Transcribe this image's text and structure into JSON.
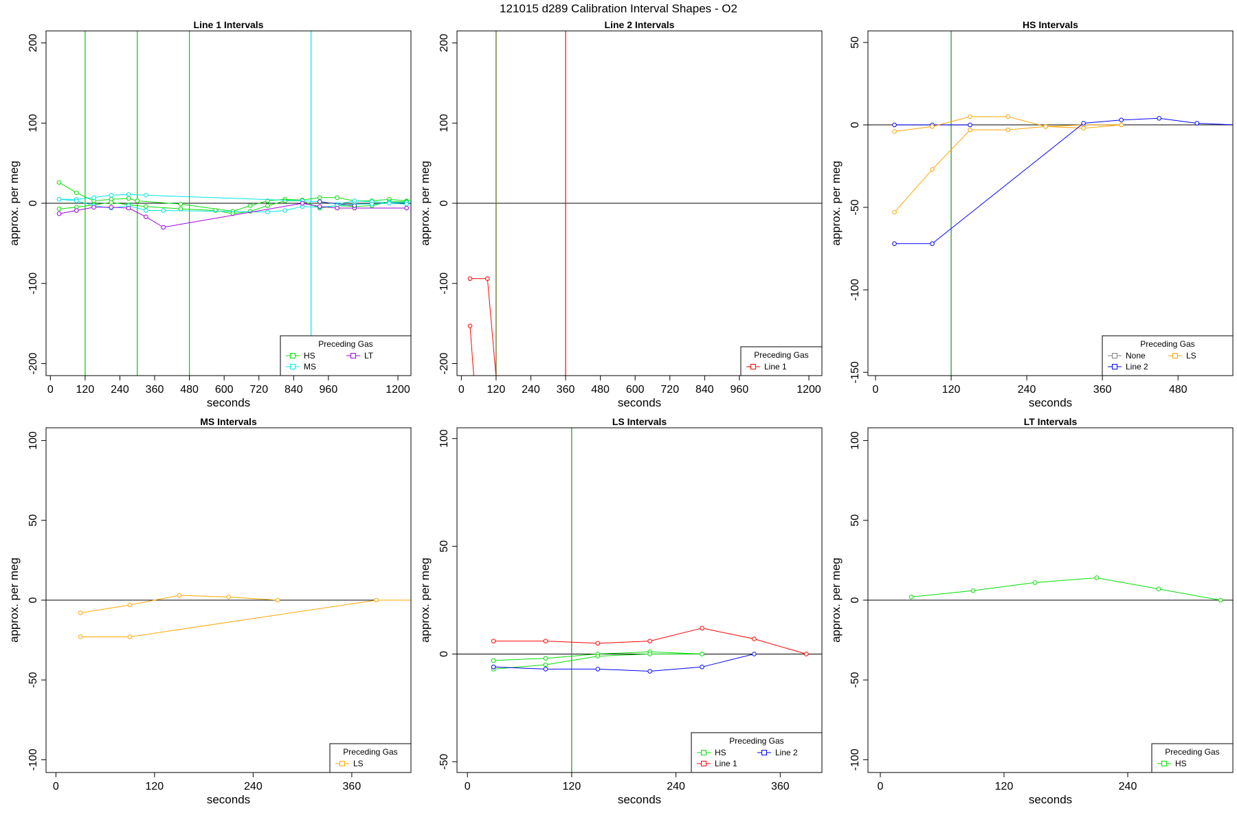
{
  "figure_title": "121015   d289   Calibration Interval Shapes - O2",
  "chart_data": [
    {
      "type": "line",
      "title": "Line 1 Intervals",
      "xlabel": "seconds",
      "ylabel": "approx. per meg",
      "xlim": [
        -15,
        1245
      ],
      "ylim": [
        -215,
        215
      ],
      "xticks": [
        0,
        120,
        240,
        360,
        480,
        600,
        720,
        840,
        960,
        1200
      ],
      "yticks": [
        -200,
        -100,
        0,
        100,
        200
      ],
      "hlines": [
        0
      ],
      "vlines": [
        {
          "x": 120,
          "color": "#00cc00"
        },
        {
          "x": 300,
          "color": "#00cc00"
        },
        {
          "x": 480,
          "color": "#00cc00"
        },
        {
          "x": 900,
          "color": "#00e5e5"
        }
      ],
      "legend": {
        "title": "Preceding Gas",
        "position": "bottom-right",
        "cols": 2,
        "entries": [
          {
            "label": "HS",
            "color": "#00e000"
          },
          {
            "label": "LT",
            "color": "#a000e0"
          },
          {
            "label": "MS",
            "color": "#00e5e5"
          }
        ]
      },
      "series": [
        {
          "color": "#00e000",
          "points": [
            [
              30,
              26
            ],
            [
              90,
              13
            ],
            [
              150,
              3
            ],
            [
              210,
              5
            ],
            [
              270,
              6
            ],
            [
              300,
              3
            ],
            [
              450,
              -1
            ],
            [
              630,
              -10
            ],
            [
              690,
              -3
            ],
            [
              750,
              3
            ],
            [
              810,
              5
            ],
            [
              870,
              4
            ],
            [
              930,
              7
            ],
            [
              990,
              7
            ],
            [
              1050,
              3
            ],
            [
              1110,
              3
            ],
            [
              1170,
              5
            ],
            [
              1230,
              3
            ]
          ]
        },
        {
          "color": "#00e000",
          "points": [
            [
              30,
              -7
            ],
            [
              90,
              -5
            ],
            [
              150,
              -2
            ],
            [
              210,
              1
            ],
            [
              270,
              -2
            ],
            [
              330,
              -4
            ],
            [
              450,
              -7
            ],
            [
              570,
              -9
            ],
            [
              630,
              -13
            ],
            [
              690,
              -10
            ],
            [
              750,
              -3
            ],
            [
              810,
              3
            ],
            [
              870,
              3
            ],
            [
              930,
              -6
            ],
            [
              990,
              -3
            ],
            [
              1050,
              -4
            ],
            [
              1110,
              -3
            ],
            [
              1170,
              2
            ],
            [
              1230,
              2
            ]
          ]
        },
        {
          "color": "#00e5e5",
          "points": [
            [
              30,
              5
            ],
            [
              90,
              5
            ],
            [
              150,
              7
            ],
            [
              210,
              10
            ],
            [
              270,
              11
            ],
            [
              330,
              10
            ],
            [
              870,
              3
            ],
            [
              930,
              2
            ],
            [
              990,
              -1
            ],
            [
              1050,
              3
            ],
            [
              1110,
              2
            ],
            [
              1170,
              1
            ],
            [
              1230,
              1
            ]
          ]
        },
        {
          "color": "#00e5e5",
          "points": [
            [
              30,
              5
            ],
            [
              90,
              3
            ],
            [
              150,
              -3
            ],
            [
              210,
              -6
            ],
            [
              270,
              -3
            ],
            [
              330,
              -9
            ],
            [
              390,
              -9
            ],
            [
              750,
              -11
            ],
            [
              810,
              -9
            ],
            [
              870,
              -4
            ],
            [
              930,
              -5
            ],
            [
              990,
              -3
            ],
            [
              1050,
              -1
            ],
            [
              1110,
              -1
            ],
            [
              1170,
              0
            ],
            [
              1230,
              -1
            ]
          ]
        },
        {
          "color": "#a000e0",
          "points": [
            [
              30,
              -13
            ],
            [
              90,
              -9
            ],
            [
              150,
              -5
            ],
            [
              210,
              -5
            ],
            [
              270,
              -6
            ],
            [
              330,
              -17
            ],
            [
              390,
              -30
            ],
            [
              870,
              0
            ],
            [
              930,
              -4
            ],
            [
              990,
              -6
            ],
            [
              1050,
              -6
            ],
            [
              1230,
              -6
            ]
          ]
        },
        {
          "color": "#333399",
          "points": [
            [
              930,
              2
            ],
            [
              1050,
              -3
            ]
          ]
        }
      ]
    },
    {
      "type": "line",
      "title": "Line 2 Intervals",
      "xlabel": "seconds",
      "ylabel": "approx. per meg",
      "xlim": [
        -15,
        1245
      ],
      "ylim": [
        -215,
        215
      ],
      "xticks": [
        0,
        120,
        240,
        360,
        480,
        600,
        720,
        840,
        960,
        1200
      ],
      "yticks": [
        -200,
        -100,
        0,
        100,
        200
      ],
      "hlines": [
        0
      ],
      "vlines": [
        {
          "x": 120,
          "color": "#556b00"
        },
        {
          "x": 360,
          "color": "#ff0000"
        }
      ],
      "legend": {
        "title": "Preceding Gas",
        "position": "bottom-right",
        "cols": 1,
        "entries": [
          {
            "label": "Line 1",
            "color": "#ff0000"
          }
        ]
      },
      "series": [
        {
          "color": "#ff0000",
          "points": [
            [
              30,
              -94
            ],
            [
              90,
              -94
            ],
            [
              150,
              -340
            ]
          ]
        },
        {
          "color": "#ff0000",
          "points": [
            [
              30,
              -153
            ],
            [
              60,
              -300
            ]
          ]
        }
      ]
    },
    {
      "type": "line",
      "title": "HS Intervals",
      "xlabel": "seconds",
      "ylabel": "approx. per meg",
      "xlim": [
        -12,
        567
      ],
      "ylim": [
        -152,
        57
      ],
      "xticks": [
        0,
        120,
        240,
        360,
        480
      ],
      "yticks": [
        -150,
        -100,
        -50,
        0,
        50
      ],
      "hlines": [
        0
      ],
      "vlines": [
        {
          "x": 120,
          "color": "#228b22"
        }
      ],
      "legend": {
        "title": "Preceding Gas",
        "position": "bottom-right",
        "cols": 2,
        "entries": [
          {
            "label": "None",
            "color": "#808080"
          },
          {
            "label": "LS",
            "color": "#ffa500"
          },
          {
            "label": "Line 2",
            "color": "#0000ff"
          }
        ]
      },
      "series": [
        {
          "color": "#0000ff",
          "points": [
            [
              30,
              0
            ],
            [
              90,
              0
            ],
            [
              150,
              0
            ]
          ]
        },
        {
          "color": "#ffa500",
          "points": [
            [
              30,
              -4
            ],
            [
              90,
              -1
            ],
            [
              150,
              5
            ],
            [
              210,
              5
            ],
            [
              270,
              -1
            ],
            [
              330,
              -2
            ],
            [
              390,
              0
            ]
          ]
        },
        {
          "color": "#ffa500",
          "points": [
            [
              30,
              -53
            ],
            [
              90,
              -27
            ],
            [
              150,
              -3
            ],
            [
              210,
              -3
            ],
            [
              270,
              -1
            ],
            [
              330,
              0
            ],
            [
              390,
              0
            ]
          ]
        },
        {
          "color": "#0000ff",
          "points": [
            [
              30,
              -72
            ],
            [
              90,
              -72
            ],
            [
              330,
              1
            ],
            [
              390,
              3
            ],
            [
              450,
              4
            ],
            [
              510,
              1
            ],
            [
              570,
              0
            ]
          ]
        }
      ]
    },
    {
      "type": "line",
      "title": "MS Intervals",
      "xlabel": "seconds",
      "ylabel": "approx. per meg",
      "xlim": [
        -12,
        432
      ],
      "ylim": [
        -108,
        108
      ],
      "xticks": [
        0,
        120,
        240,
        360
      ],
      "yticks": [
        -100,
        -50,
        0,
        50,
        100
      ],
      "hlines": [
        0
      ],
      "vlines": [],
      "legend": {
        "title": "Preceding Gas",
        "position": "bottom-right",
        "cols": 1,
        "entries": [
          {
            "label": "LS",
            "color": "#ffa500"
          }
        ]
      },
      "series": [
        {
          "color": "#ffa500",
          "points": [
            [
              30,
              -8
            ],
            [
              90,
              -3
            ],
            [
              150,
              3
            ],
            [
              210,
              2
            ],
            [
              270,
              0
            ]
          ]
        },
        {
          "color": "#ffa500",
          "points": [
            [
              30,
              -23
            ],
            [
              90,
              -23
            ],
            [
              390,
              0
            ],
            [
              450,
              0
            ]
          ]
        }
      ]
    },
    {
      "type": "line",
      "title": "LS Intervals",
      "xlabel": "seconds",
      "ylabel": "approx. per meg",
      "xlim": [
        -12,
        408
      ],
      "ylim": [
        -55,
        105
      ],
      "xticks": [
        0,
        120,
        240,
        360
      ],
      "yticks": [
        -50,
        0,
        50,
        100
      ],
      "hlines": [
        0
      ],
      "vlines": [
        {
          "x": 120,
          "color": "#228b22"
        }
      ],
      "legend": {
        "title": "Preceding Gas",
        "position": "bottom-right",
        "cols": 2,
        "entries": [
          {
            "label": "HS",
            "color": "#00e000"
          },
          {
            "label": "Line 2",
            "color": "#0000ff"
          },
          {
            "label": "Line 1",
            "color": "#ff0000"
          }
        ]
      },
      "series": [
        {
          "color": "#ff0000",
          "points": [
            [
              30,
              6
            ],
            [
              90,
              6
            ],
            [
              150,
              5
            ],
            [
              210,
              6
            ],
            [
              270,
              12
            ],
            [
              330,
              7
            ],
            [
              390,
              0
            ]
          ]
        },
        {
          "color": "#00e000",
          "points": [
            [
              30,
              -3
            ],
            [
              90,
              -2
            ],
            [
              150,
              0
            ],
            [
              210,
              1
            ],
            [
              270,
              0
            ]
          ]
        },
        {
          "color": "#00e000",
          "points": [
            [
              30,
              -7
            ],
            [
              90,
              -5
            ],
            [
              150,
              -1
            ],
            [
              210,
              0
            ],
            [
              270,
              0
            ]
          ]
        },
        {
          "color": "#0000ff",
          "points": [
            [
              30,
              -6
            ],
            [
              90,
              -7
            ],
            [
              150,
              -7
            ],
            [
              210,
              -8
            ],
            [
              270,
              -6
            ],
            [
              330,
              0
            ]
          ]
        }
      ]
    },
    {
      "type": "line",
      "title": "LT Intervals",
      "xlabel": "seconds",
      "ylabel": "approx. per meg",
      "xlim": [
        -12,
        342
      ],
      "ylim": [
        -108,
        108
      ],
      "xticks": [
        0,
        120,
        240
      ],
      "yticks": [
        -100,
        -50,
        0,
        50,
        100
      ],
      "hlines": [
        0
      ],
      "vlines": [],
      "legend": {
        "title": "Preceding Gas",
        "position": "bottom-right",
        "cols": 1,
        "entries": [
          {
            "label": "HS",
            "color": "#00e000"
          }
        ]
      },
      "series": [
        {
          "color": "#00e000",
          "points": [
            [
              30,
              2
            ],
            [
              90,
              6
            ],
            [
              150,
              11
            ],
            [
              210,
              14
            ],
            [
              270,
              7
            ],
            [
              330,
              0
            ]
          ]
        }
      ]
    }
  ]
}
